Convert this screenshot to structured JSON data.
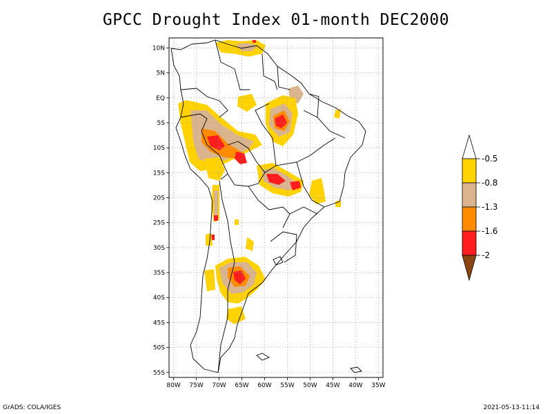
{
  "title": "GPCC Drought Index 01-month DEC2000",
  "footer": {
    "left": "GrADS: COLA/IGES",
    "right": "2021-05-13-11:14"
  },
  "map": {
    "lat_labels": [
      "10N",
      "5N",
      "EQ",
      "5S",
      "10S",
      "15S",
      "20S",
      "25S",
      "30S",
      "35S",
      "40S",
      "45S",
      "50S",
      "55S"
    ],
    "lon_labels": [
      "80W",
      "75W",
      "70W",
      "65W",
      "60W",
      "55W",
      "50W",
      "45W",
      "40W",
      "35W"
    ],
    "lon_range": [
      -81,
      -34
    ],
    "lat_range": [
      -56,
      12
    ],
    "grid": true
  },
  "legend": {
    "labels": [
      "-0.5",
      "-0.8",
      "-1.3",
      "-1.6",
      "-2"
    ],
    "colors": {
      "top_arrow": "#ffffff",
      "b1": "#ffd200",
      "b2": "#d9b48c",
      "b3": "#ff8c00",
      "b4": "#ff1e1e",
      "bottom_arrow": "#8b4513"
    }
  }
}
